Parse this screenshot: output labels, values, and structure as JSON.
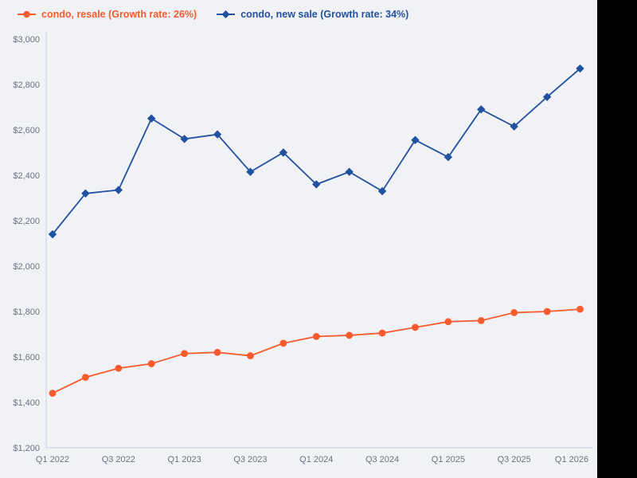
{
  "chart": {
    "background": "#f0f2f5",
    "axis_color": "#c7d3e6",
    "tick_label_color": "#6b7280",
    "side_band_color": "#000000"
  },
  "legend": {
    "items": [
      {
        "label": "condo, resale (Growth rate: 26%)",
        "marker": "circle"
      },
      {
        "label": "condo, new sale (Growth rate: 34%)",
        "marker": "diamond"
      }
    ]
  },
  "chart_data": {
    "type": "line",
    "title": "",
    "xlabel": "",
    "ylabel": "",
    "grid": false,
    "legend_position": "top-left",
    "ylim": [
      1200,
      3000
    ],
    "y_tick_step": 200,
    "y_tick_prefix": "$",
    "x_categories": [
      "Q1 2022",
      "Q2 2022",
      "Q3 2022",
      "Q4 2022",
      "Q1 2023",
      "Q2 2023",
      "Q3 2023",
      "Q4 2023",
      "Q1 2024",
      "Q2 2024",
      "Q3 2024",
      "Q4 2024",
      "Q1 2025",
      "Q2 2025",
      "Q3 2025",
      "Q4 2025",
      "Q1 2026"
    ],
    "x_tick_labels_shown": [
      "Q1 2022",
      "Q3 2022",
      "Q1 2023",
      "Q3 2023",
      "Q1 2024",
      "Q3 2024",
      "Q1 2025",
      "Q3 2025",
      "Q1 2026"
    ],
    "series": [
      {
        "name": "condo, resale (Growth rate: 26%)",
        "marker": "circle",
        "color": "#fa5a2d",
        "values": [
          1440,
          1510,
          1550,
          1570,
          1615,
          1620,
          1605,
          1660,
          1690,
          1695,
          1705,
          1730,
          1755,
          1760,
          1795,
          1800,
          1810
        ]
      },
      {
        "name": "condo, new sale (Growth rate: 34%)",
        "marker": "diamond",
        "color": "#2251a0",
        "values": [
          2140,
          2320,
          2335,
          2650,
          2560,
          2580,
          2415,
          2500,
          2360,
          2415,
          2330,
          2555,
          2480,
          2690,
          2615,
          2745,
          2870
        ]
      }
    ]
  }
}
